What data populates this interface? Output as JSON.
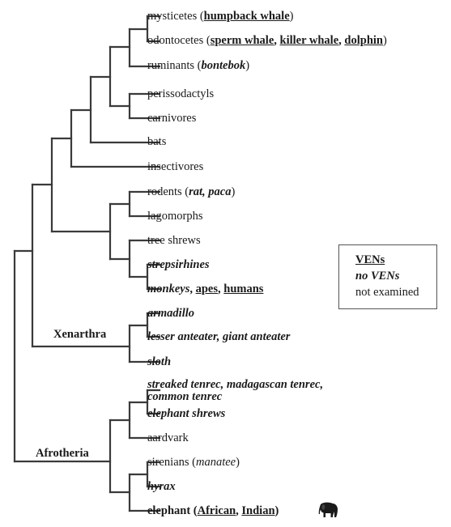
{
  "taxa": [
    [
      {
        "t": "mysticetes (",
        "s": ""
      },
      {
        "t": "humpback whale",
        "s": "bu"
      },
      {
        "t": ")",
        "s": ""
      }
    ],
    [
      {
        "t": "odontocetes (",
        "s": ""
      },
      {
        "t": "sperm whale",
        "s": "bu"
      },
      {
        "t": ", ",
        "s": "b"
      },
      {
        "t": "killer whale",
        "s": "bu"
      },
      {
        "t": ", ",
        "s": "b"
      },
      {
        "t": "dolphin",
        "s": "bu"
      },
      {
        "t": ")",
        "s": ""
      }
    ],
    [
      {
        "t": "ruminants (",
        "s": ""
      },
      {
        "t": "bontebok",
        "s": "bi"
      },
      {
        "t": ")",
        "s": ""
      }
    ],
    [
      {
        "t": "perissodactyls",
        "s": ""
      }
    ],
    [
      {
        "t": "carnivores",
        "s": ""
      }
    ],
    [
      {
        "t": "bats",
        "s": ""
      }
    ],
    [
      {
        "t": "insectivores",
        "s": ""
      }
    ],
    [
      {
        "t": "rodents (",
        "s": ""
      },
      {
        "t": "rat, paca",
        "s": "bi"
      },
      {
        "t": ")",
        "s": ""
      }
    ],
    [
      {
        "t": "lagomorphs",
        "s": ""
      }
    ],
    [
      {
        "t": "tree shrews",
        "s": ""
      }
    ],
    [
      {
        "t": "strepsirhines",
        "s": "bi"
      }
    ],
    [
      {
        "t": "monkeys",
        "s": "bi"
      },
      {
        "t": ", ",
        "s": "b"
      },
      {
        "t": "apes",
        "s": "bu"
      },
      {
        "t": ", ",
        "s": "b"
      },
      {
        "t": "humans",
        "s": "bu"
      }
    ],
    [
      {
        "t": "armadillo",
        "s": "bi"
      }
    ],
    [
      {
        "t": "lesser anteater, giant anteater",
        "s": "bi"
      }
    ],
    [
      {
        "t": "sloth",
        "s": "bi"
      }
    ],
    [
      {
        "t": "streaked tenrec, madagascan tenrec,",
        "s": "bi"
      }
    ],
    [
      {
        "t": "common tenrec",
        "s": "bi"
      }
    ],
    [
      {
        "t": "elephant shrews",
        "s": "bi"
      }
    ],
    [
      {
        "t": "aardvark",
        "s": ""
      }
    ],
    [
      {
        "t": "sirenians (",
        "s": ""
      },
      {
        "t": "manatee",
        "s": "i"
      },
      {
        "t": ")",
        "s": ""
      }
    ],
    [
      {
        "t": "hyrax",
        "s": "bi"
      }
    ],
    [
      {
        "t": "elephant (",
        "s": "b"
      },
      {
        "t": "African",
        "s": "bu"
      },
      {
        "t": ", ",
        "s": "b"
      },
      {
        "t": "Indian",
        "s": "bu"
      },
      {
        "t": ")",
        "s": "b"
      }
    ]
  ],
  "clades": {
    "xenarthra": "Xenarthra",
    "afrotheria": "Afrotheria"
  },
  "legend": {
    "examined_with_vens": "VENs",
    "no_vens": "no VENs",
    "not_examined": "not examined"
  },
  "icons": {
    "elephant": "elephant-silhouette-icon"
  },
  "colors": {
    "branch": "#3a3a3a",
    "text": "#1a1a1a"
  }
}
